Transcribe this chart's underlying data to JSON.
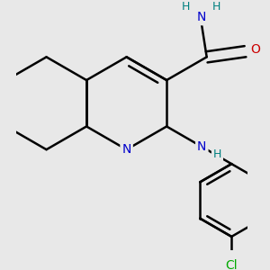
{
  "background_color": "#e8e8e8",
  "atom_colors": {
    "C": "#000000",
    "N": "#0000cc",
    "O": "#cc0000",
    "Cl": "#00aa00",
    "H": "#008080"
  },
  "bond_color": "#000000",
  "bond_width": 1.8,
  "figsize": [
    3.0,
    3.0
  ],
  "dpi": 100
}
